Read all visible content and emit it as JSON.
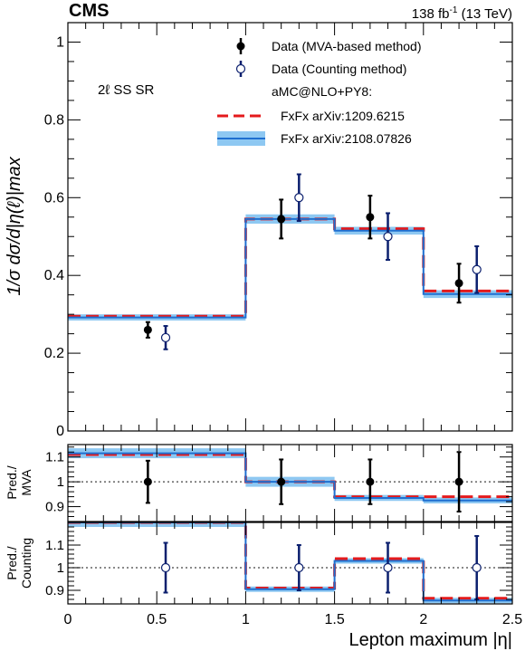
{
  "header": {
    "experiment": "CMS",
    "lumi": "138 fb",
    "lumi_sup": "-1",
    "energy": "(13 TeV)"
  },
  "region_label": "2ℓ SS SR",
  "colors": {
    "data_mva": "#000000",
    "data_counting": "#0b1f6e",
    "fxfx_old": "#e41a1c",
    "fxfx_new_line": "#1f6fd0",
    "fxfx_new_band": "#8ec8f2"
  },
  "legend": {
    "entries": [
      {
        "id": "data_mva",
        "label": "Data (MVA-based method)"
      },
      {
        "id": "data_counting",
        "label": "Data (Counting method)"
      },
      {
        "id": "generator",
        "label": "aMC@NLO+PY8:"
      },
      {
        "id": "fxfx_old",
        "label": "FxFx arXiv:1209.6215"
      },
      {
        "id": "fxfx_new",
        "label": "FxFx arXiv:2108.07826"
      }
    ]
  },
  "chart_data": [
    {
      "type": "line",
      "panel": "main",
      "ylabel": "1/σ dσ/d|η(ℓ)|max",
      "ylim": [
        0,
        1.05
      ],
      "yticks": [
        0,
        0.2,
        0.4,
        0.6,
        0.8,
        1
      ],
      "ytick_labels": [
        "0",
        "0.2",
        "0.4",
        "0.6",
        "0.8",
        "1"
      ],
      "bin_edges": [
        0,
        1,
        1.5,
        2,
        2.5
      ],
      "series": [
        {
          "name": "Data (MVA-based method)",
          "kind": "points",
          "x": [
            0.45,
            1.2,
            1.7,
            2.2
          ],
          "values": [
            0.26,
            0.545,
            0.55,
            0.38
          ],
          "err": [
            0.02,
            0.05,
            0.055,
            0.05
          ]
        },
        {
          "name": "Data (Counting method)",
          "kind": "points",
          "x": [
            0.55,
            1.3,
            1.8,
            2.3
          ],
          "values": [
            0.24,
            0.6,
            0.5,
            0.415
          ],
          "err": [
            0.03,
            0.06,
            0.06,
            0.06
          ]
        },
        {
          "name": "FxFx arXiv:1209.6215",
          "kind": "step",
          "values": [
            0.295,
            0.545,
            0.52,
            0.36
          ]
        },
        {
          "name": "FxFx arXiv:2108.07826",
          "kind": "step_band",
          "values": [
            0.292,
            0.545,
            0.515,
            0.352
          ],
          "band": [
            0.008,
            0.012,
            0.01,
            0.01
          ]
        }
      ]
    },
    {
      "type": "line",
      "panel": "ratio_mva",
      "ylabel": "Pred./ MVA",
      "ylim": [
        0.84,
        1.15
      ],
      "yticks": [
        0.9,
        1,
        1.1
      ],
      "ytick_labels": [
        "0.9",
        "1",
        "1.1"
      ],
      "reference": 1,
      "series": [
        {
          "name": "Data (MVA-based method)",
          "kind": "points",
          "x": [
            0.45,
            1.2,
            1.7,
            2.2
          ],
          "values": [
            1.0,
            1.0,
            1.0,
            1.0
          ],
          "err": [
            0.085,
            0.09,
            0.09,
            0.12
          ]
        },
        {
          "name": "FxFx arXiv:1209.6215",
          "kind": "step",
          "values": [
            1.11,
            1.0,
            0.94,
            0.94
          ]
        },
        {
          "name": "FxFx arXiv:2108.07826",
          "kind": "step_band",
          "values": [
            1.115,
            1.0,
            0.935,
            0.925
          ],
          "band": [
            0.02,
            0.02,
            0.012,
            0.012
          ]
        }
      ]
    },
    {
      "type": "line",
      "panel": "ratio_counting",
      "ylabel": "Pred./ Counting",
      "ylim": [
        0.84,
        1.2
      ],
      "yticks": [
        0.9,
        1,
        1.1
      ],
      "ytick_labels": [
        "0.9",
        "1",
        "1.1"
      ],
      "reference": 1,
      "xlabel": "Lepton maximum |η|",
      "xlim": [
        0,
        2.5
      ],
      "xticks": [
        0,
        0.5,
        1,
        1.5,
        2,
        2.5
      ],
      "xtick_labels": [
        "0",
        "0.5",
        "1",
        "1.5",
        "2",
        "2.5"
      ],
      "series": [
        {
          "name": "Data (Counting method)",
          "kind": "points",
          "x": [
            0.55,
            1.3,
            1.8,
            2.3
          ],
          "values": [
            1.0,
            1.0,
            1.0,
            1.0
          ],
          "err": [
            0.11,
            0.1,
            0.11,
            0.14
          ]
        },
        {
          "name": "FxFx arXiv:1209.6215",
          "kind": "step",
          "values": [
            1.2,
            0.91,
            1.04,
            0.865
          ]
        },
        {
          "name": "FxFx arXiv:2108.07826",
          "kind": "step_band",
          "values": [
            1.2,
            0.905,
            1.03,
            0.855
          ],
          "band": [
            0.02,
            0.012,
            0.012,
            0.012
          ]
        }
      ]
    }
  ]
}
